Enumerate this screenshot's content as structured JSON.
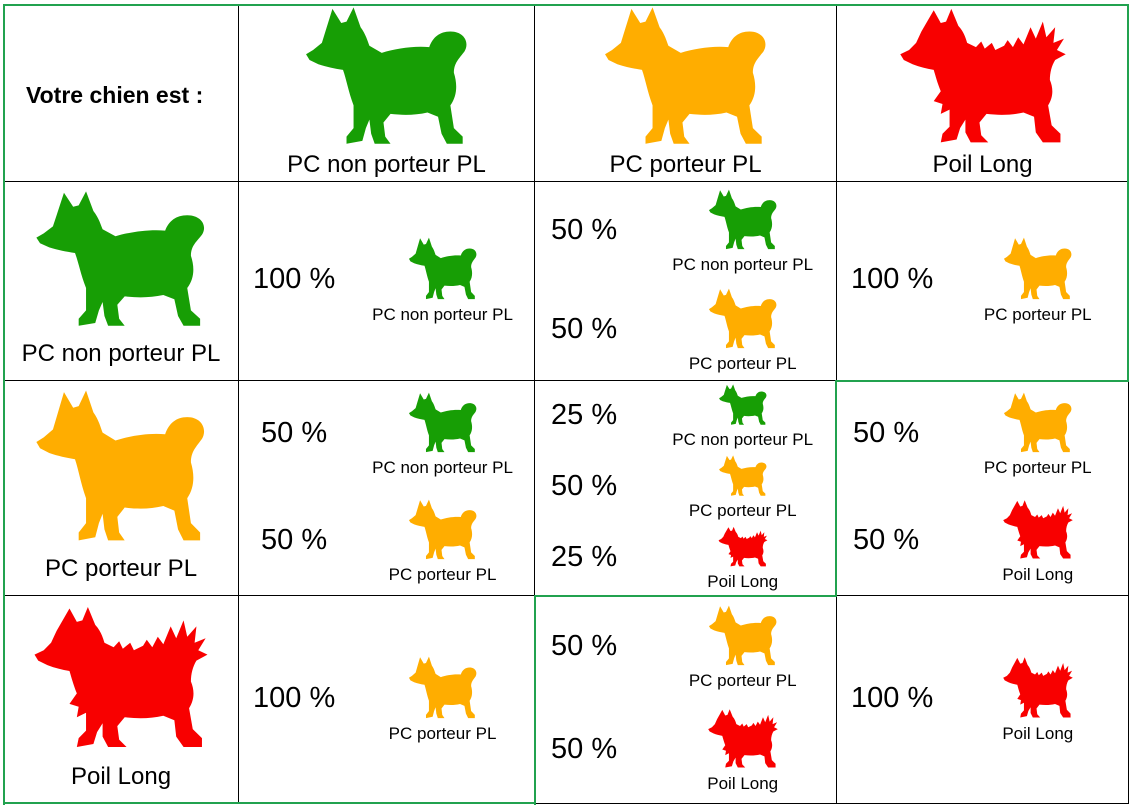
{
  "corner_label": "Votre chien est :",
  "colors": {
    "green": "#179e05",
    "orange": "#ffad00",
    "red": "#f80000",
    "frame_green": "#21a24f"
  },
  "columns": [
    {
      "label": "PC non porteur PL",
      "color": "green"
    },
    {
      "label": "PC porteur PL",
      "color": "orange"
    },
    {
      "label": "Poil Long",
      "color": "red"
    }
  ],
  "rows": [
    {
      "label": "PC non porteur PL",
      "color": "green"
    },
    {
      "label": "PC porteur PL",
      "color": "orange"
    },
    {
      "label": "Poil Long",
      "color": "red"
    }
  ],
  "outcomes": [
    [
      [
        {
          "percent": "100 %",
          "label": "PC non porteur PL",
          "color": "green"
        }
      ],
      [
        {
          "percent": "50 %",
          "label": "PC non porteur PL",
          "color": "green"
        },
        {
          "percent": "50 %",
          "label": "PC porteur PL",
          "color": "orange"
        }
      ],
      [
        {
          "percent": "100 %",
          "label": "PC porteur PL",
          "color": "orange"
        }
      ]
    ],
    [
      [
        {
          "percent": "50 %",
          "label": "PC non porteur PL",
          "color": "green"
        },
        {
          "percent": "50 %",
          "label": "PC porteur PL",
          "color": "orange"
        }
      ],
      [
        {
          "percent": "25 %",
          "label": "PC non porteur PL",
          "color": "green"
        },
        {
          "percent": "50 %",
          "label": "PC porteur PL",
          "color": "orange"
        },
        {
          "percent": "25 %",
          "label": "Poil Long",
          "color": "red"
        }
      ],
      [
        {
          "percent": "50 %",
          "label": "PC porteur PL",
          "color": "orange"
        },
        {
          "percent": "50 %",
          "label": "Poil Long",
          "color": "red"
        }
      ]
    ],
    [
      [
        {
          "percent": "100 %",
          "label": "PC porteur PL",
          "color": "orange"
        }
      ],
      [
        {
          "percent": "50 %",
          "label": "PC porteur PL",
          "color": "orange"
        },
        {
          "percent": "50 %",
          "label": "Poil Long",
          "color": "red"
        }
      ],
      [
        {
          "percent": "100 %",
          "label": "Poil Long",
          "color": "red"
        }
      ]
    ]
  ]
}
